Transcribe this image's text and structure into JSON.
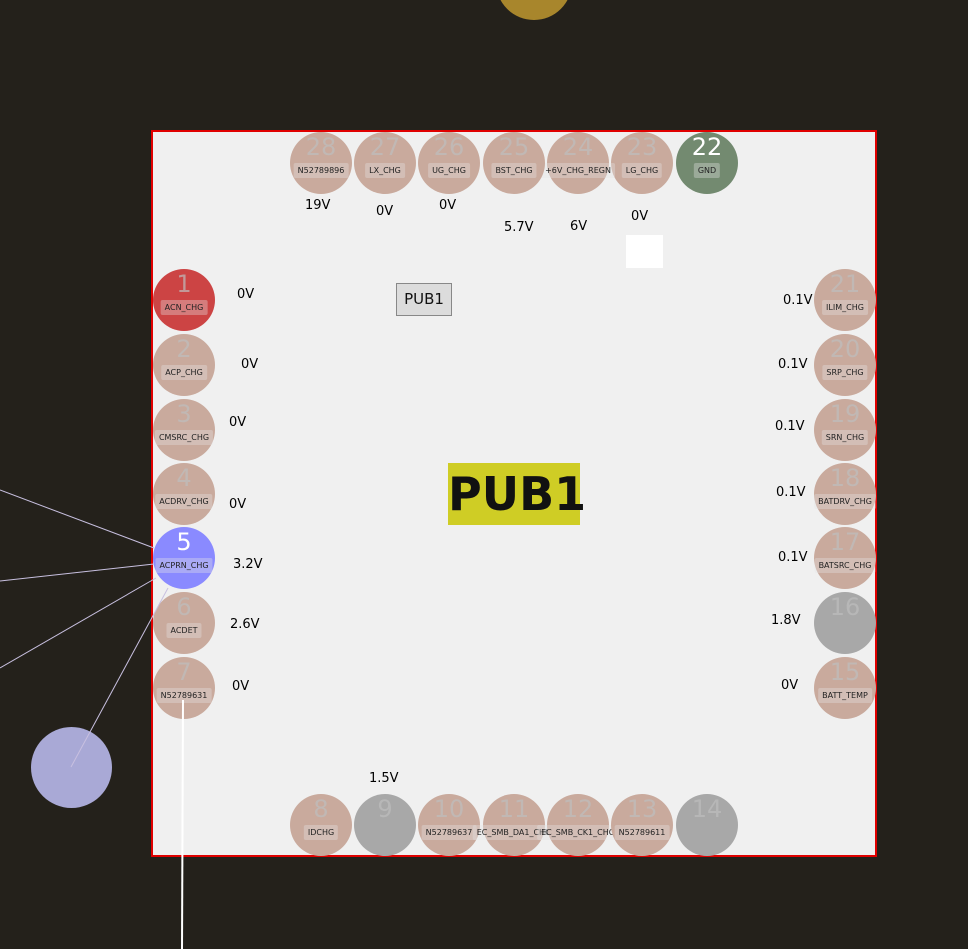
{
  "component": {
    "ref_label": "PUB1",
    "ref_large": "PUB1"
  },
  "colors": {
    "board_outline": "#e00000",
    "pin_default": "#c9aa9d",
    "pin_selected": "#8a8aff",
    "pin_highlight": "#cc4444",
    "pin_gnd": "#738a70",
    "pin_nc": "#a8a8a8",
    "ref_highlight": "#cfcd25"
  },
  "pins": [
    {
      "num": "1",
      "net": "ACN_CHG",
      "voltage": "0V",
      "state": "highlight"
    },
    {
      "num": "2",
      "net": "ACP_CHG",
      "voltage": "0V",
      "state": "default"
    },
    {
      "num": "3",
      "net": "CMSRC_CHG",
      "voltage": "0V",
      "state": "default"
    },
    {
      "num": "4",
      "net": "ACDRV_CHG",
      "voltage": "0V",
      "state": "default"
    },
    {
      "num": "5",
      "net": "ACPRN_CHG",
      "voltage": "3.2V",
      "state": "selected"
    },
    {
      "num": "6",
      "net": "ACDET",
      "voltage": "2.6V",
      "state": "default"
    },
    {
      "num": "7",
      "net": "N52789631",
      "voltage": "0V",
      "state": "default"
    },
    {
      "num": "8",
      "net": "IDCHG",
      "voltage": "",
      "state": "default"
    },
    {
      "num": "9",
      "net": "",
      "voltage": "1.5V",
      "state": "nc"
    },
    {
      "num": "10",
      "net": "N52789637",
      "voltage": "",
      "state": "default"
    },
    {
      "num": "11",
      "net": "EC_SMB_DA1_CHG",
      "voltage": "",
      "state": "default"
    },
    {
      "num": "12",
      "net": "EC_SMB_CK1_CHG",
      "voltage": "",
      "state": "default"
    },
    {
      "num": "13",
      "net": "N52789611",
      "voltage": "",
      "state": "default"
    },
    {
      "num": "14",
      "net": "",
      "voltage": "",
      "state": "nc"
    },
    {
      "num": "15",
      "net": "BATT_TEMP",
      "voltage": "0V",
      "state": "default"
    },
    {
      "num": "16",
      "net": "",
      "voltage": "1.8V",
      "state": "nc"
    },
    {
      "num": "17",
      "net": "BATSRC_CHG",
      "voltage": "0.1V",
      "state": "default"
    },
    {
      "num": "18",
      "net": "BATDRV_CHG",
      "voltage": "0.1V",
      "state": "default"
    },
    {
      "num": "19",
      "net": "SRN_CHG",
      "voltage": "0.1V",
      "state": "default"
    },
    {
      "num": "20",
      "net": "SRP_CHG",
      "voltage": "0.1V",
      "state": "default"
    },
    {
      "num": "21",
      "net": "ILIM_CHG",
      "voltage": "0.1V",
      "state": "default"
    },
    {
      "num": "22",
      "net": "GND",
      "voltage": "",
      "state": "gnd"
    },
    {
      "num": "23",
      "net": "LG_CHG",
      "voltage": "0V",
      "state": "default"
    },
    {
      "num": "24",
      "net": "+6V_CHG_REGN",
      "voltage": "6V",
      "state": "default"
    },
    {
      "num": "25",
      "net": "BST_CHG",
      "voltage": "5.7V",
      "state": "default"
    },
    {
      "num": "26",
      "net": "UG_CHG",
      "voltage": "0V",
      "state": "default"
    },
    {
      "num": "27",
      "net": "LX_CHG",
      "voltage": "0V",
      "state": "default"
    },
    {
      "num": "28",
      "net": "N52789896",
      "voltage": "19V",
      "state": "default"
    }
  ]
}
